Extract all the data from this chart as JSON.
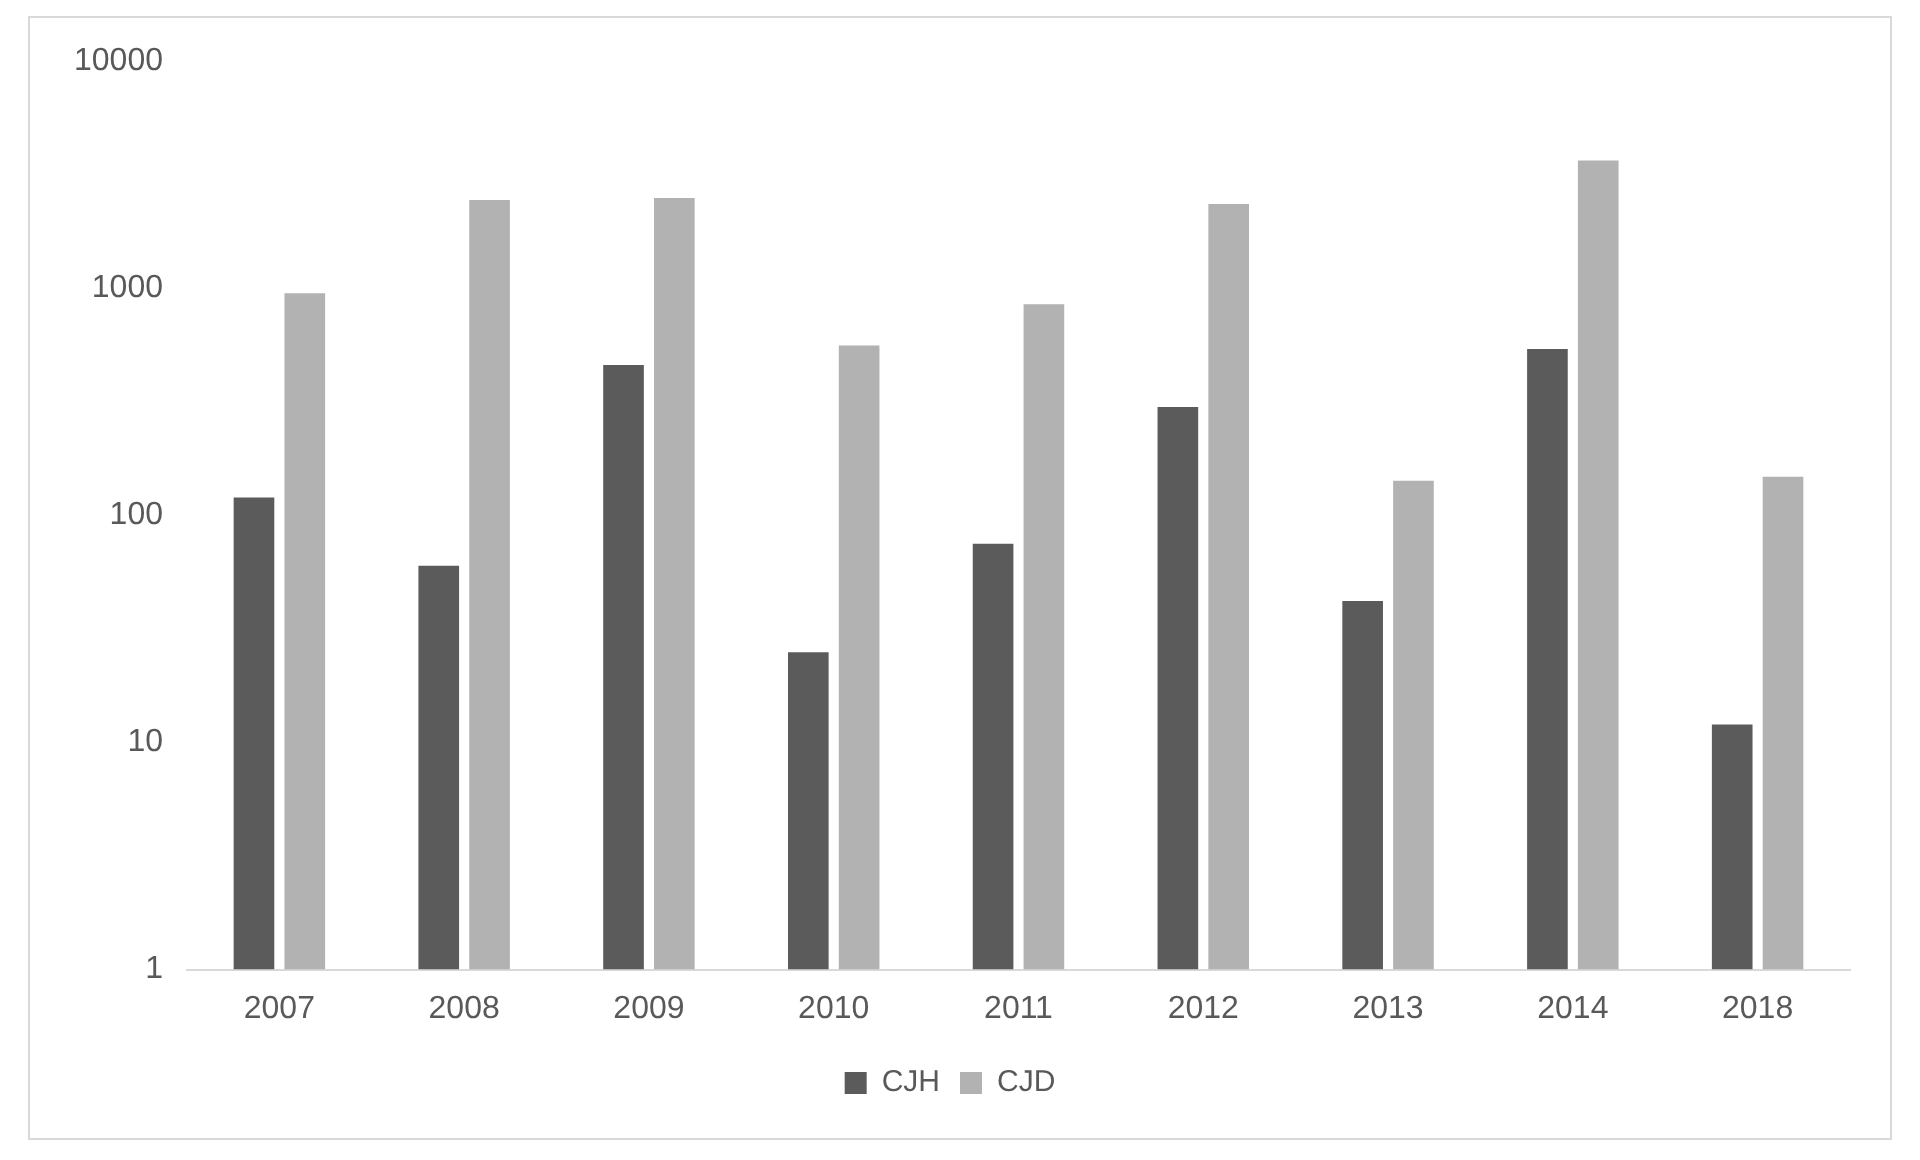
{
  "chart_data": {
    "type": "bar",
    "categories": [
      "2007",
      "2008",
      "2009",
      "2010",
      "2011",
      "2012",
      "2013",
      "2014",
      "2018"
    ],
    "series": [
      {
        "name": "CJH",
        "color": "#5b5b5b",
        "values": [
          120,
          60,
          460,
          25,
          75,
          300,
          42,
          540,
          12
        ]
      },
      {
        "name": "CJD",
        "color": "#b2b2b2",
        "values": [
          950,
          2450,
          2500,
          560,
          850,
          2350,
          142,
          3650,
          148
        ]
      }
    ],
    "log": true,
    "ylim": [
      1,
      10000
    ],
    "yticks": [
      1,
      10,
      100,
      1000,
      10000
    ],
    "grid": false,
    "legend": "bottom"
  }
}
